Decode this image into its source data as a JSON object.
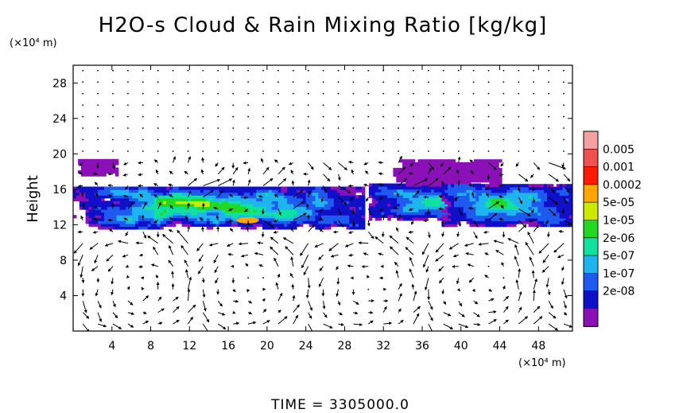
{
  "chart_data": {
    "type": "heatmap",
    "title": "H2O-s Cloud & Rain Mixing Ratio [kg/kg]",
    "ylabel": "Height",
    "y_unit": "(×10⁴ m)",
    "x_unit": "(×10⁴ m)",
    "x_ticks": [
      "4",
      "8",
      "12",
      "16",
      "20",
      "24",
      "28",
      "32",
      "36",
      "40",
      "44",
      "48"
    ],
    "y_ticks": [
      "4",
      "8",
      "12",
      "16",
      "20",
      "24",
      "28"
    ],
    "xlim": [
      0,
      51.5
    ],
    "ylim": [
      0,
      30
    ],
    "legend": {
      "position": "right",
      "labels": [
        "0.005",
        "0.001",
        "0.0002",
        "5e-05",
        "1e-05",
        "2e-06",
        "5e-07",
        "1e-07",
        "2e-08"
      ],
      "colors": [
        "#f4a0a0",
        "#f05050",
        "#ff1a00",
        "#ffa500",
        "#ccea00",
        "#22d822",
        "#10e0a0",
        "#1eb4f0",
        "#1e5af0",
        "#1010c8",
        "#8b10b8"
      ]
    },
    "cloud_regions": [
      {
        "x": [
          0,
          30
        ],
        "y": [
          11.5,
          16.3
        ],
        "level": "5e-05"
      },
      {
        "x": [
          0.5,
          4.5
        ],
        "y": [
          17.5,
          19.3
        ],
        "level": "2e-08"
      },
      {
        "x": [
          30.5,
          42
        ],
        "y": [
          12.5,
          16.5
        ],
        "level": "2e-06"
      },
      {
        "x": [
          33,
          44
        ],
        "y": [
          16.5,
          19.2
        ],
        "level": "2e-08"
      },
      {
        "x": [
          38,
          51.5
        ],
        "y": [
          11.8,
          16.5
        ],
        "level": "1e-05"
      }
    ],
    "max_level_location": {
      "x": 18,
      "y": 12.5,
      "level": "0.0002"
    },
    "vectors": "wind vectors over full domain"
  },
  "time_label": "TIME = 3305000.0"
}
